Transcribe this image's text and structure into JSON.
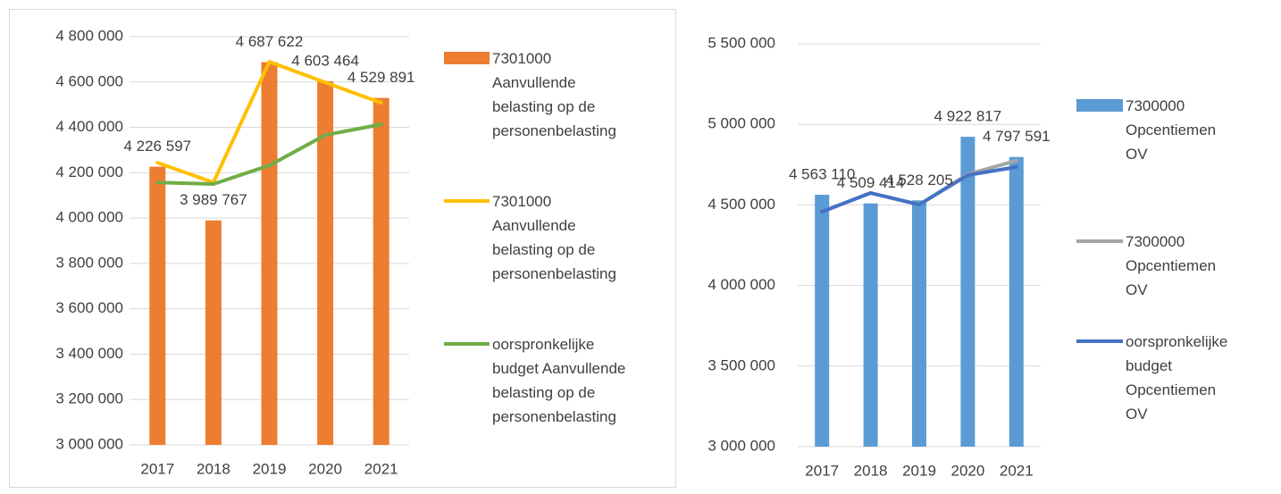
{
  "chart_data": [
    {
      "type": "bar",
      "categories": [
        "2017",
        "2018",
        "2019",
        "2020",
        "2021"
      ],
      "ylim": [
        3000000,
        4800000
      ],
      "yticks": [
        {
          "value": 3000000,
          "label": "3 000 000"
        },
        {
          "value": 3200000,
          "label": "3 200 000"
        },
        {
          "value": 3400000,
          "label": "3 400 000"
        },
        {
          "value": 3600000,
          "label": "3 600 000"
        },
        {
          "value": 3800000,
          "label": "3 800 000"
        },
        {
          "value": 4000000,
          "label": "4 000 000"
        },
        {
          "value": 4200000,
          "label": "4 200 000"
        },
        {
          "value": 4400000,
          "label": "4 400 000"
        },
        {
          "value": 4600000,
          "label": "4 600 000"
        },
        {
          "value": 4800000,
          "label": "4 800 000"
        }
      ],
      "grid": true,
      "series": [
        {
          "name": "7301000 Aanvullende belasting op de personenbelasting",
          "type": "bar",
          "color": "#ed7d31",
          "values": [
            4226597,
            3989767,
            4687622,
            4603464,
            4529891
          ],
          "value_labels": [
            "4 226 597",
            "3 989 767",
            "4 687 622",
            "4 603 464",
            "4 529 891"
          ]
        },
        {
          "name": "7301000 Aanvullende belasting op de personenbelasting",
          "type": "line",
          "color": "#ffc000",
          "values": [
            4244000,
            4157000,
            4689000,
            4598000,
            4508000
          ]
        },
        {
          "name": "oorspronkelijke budget Aanvullende belasting op de personenbelasting",
          "type": "line",
          "color": "#70ad47",
          "values": [
            4157000,
            4150000,
            4232000,
            4366000,
            4413000
          ]
        }
      ]
    },
    {
      "type": "bar",
      "categories": [
        "2017",
        "2018",
        "2019",
        "2020",
        "2021"
      ],
      "ylim": [
        3000000,
        5500000
      ],
      "yticks": [
        {
          "value": 3000000,
          "label": "3 000 000"
        },
        {
          "value": 3500000,
          "label": "3 500 000"
        },
        {
          "value": 4000000,
          "label": "4 000 000"
        },
        {
          "value": 4500000,
          "label": "4 500 000"
        },
        {
          "value": 5000000,
          "label": "5 000 000"
        },
        {
          "value": 5500000,
          "label": "5 500 000"
        }
      ],
      "grid": true,
      "series": [
        {
          "name": "7300000 Opcentiemen OV",
          "type": "bar",
          "color": "#5b9bd5",
          "values": [
            4563110,
            4509414,
            4528205,
            4922817,
            4797591
          ],
          "value_labels": [
            "4 563 110",
            "4 509 414",
            "4 528 205",
            "4 922 817",
            "4 797 591"
          ]
        },
        {
          "name": "7300000 Opcentiemen OV",
          "type": "line",
          "color": "#a5a5a5",
          "values": [
            4458000,
            4574000,
            4502000,
            4690000,
            4775000
          ]
        },
        {
          "name": "oorspronkelijke budget Opcentiemen OV",
          "type": "line",
          "color": "#4472c4",
          "values": [
            4458000,
            4574000,
            4502000,
            4685000,
            4735000
          ]
        }
      ]
    }
  ]
}
